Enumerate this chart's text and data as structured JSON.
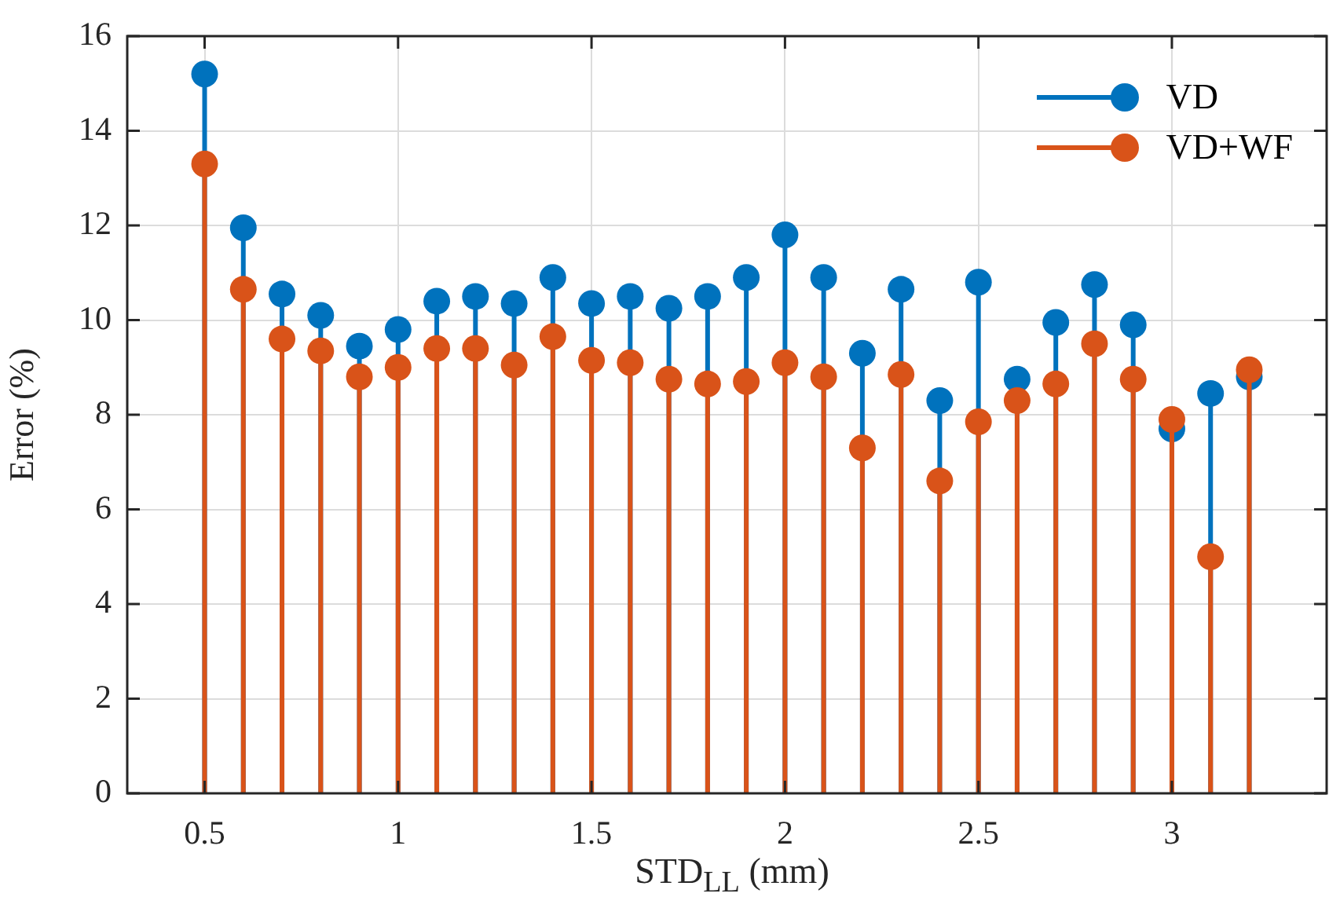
{
  "chart_data": {
    "type": "lollipop",
    "xlabel": "STD$_{LL}$ (mm)",
    "ylabel": "Error (%)",
    "x": [
      0.5,
      0.6,
      0.7,
      0.8,
      0.9,
      1.0,
      1.1,
      1.2,
      1.3,
      1.4,
      1.5,
      1.6,
      1.7,
      1.8,
      1.9,
      2.0,
      2.1,
      2.2,
      2.3,
      2.4,
      2.5,
      2.6,
      2.7,
      2.8,
      2.9,
      3.0,
      3.1,
      3.2
    ],
    "series": [
      {
        "name": "VD",
        "color": "#0072bd",
        "values": [
          15.2,
          11.95,
          10.55,
          10.1,
          9.45,
          9.8,
          10.4,
          10.5,
          10.35,
          10.9,
          10.35,
          10.5,
          10.25,
          10.5,
          10.9,
          11.8,
          10.9,
          9.3,
          10.65,
          8.3,
          10.8,
          8.75,
          9.95,
          10.75,
          9.9,
          7.7,
          8.45,
          8.8
        ]
      },
      {
        "name": "VD+WF",
        "color": "#d95319",
        "values": [
          13.3,
          10.65,
          9.6,
          9.35,
          8.8,
          9.0,
          9.4,
          9.4,
          9.05,
          9.65,
          9.15,
          9.1,
          8.75,
          8.65,
          8.7,
          9.1,
          8.8,
          7.3,
          8.85,
          6.6,
          7.85,
          8.3,
          8.65,
          9.5,
          8.75,
          7.9,
          5.0,
          8.95
        ]
      }
    ],
    "xlim": [
      0.3,
      3.4
    ],
    "xticks": [
      0.5,
      1,
      1.5,
      2,
      2.5,
      3
    ],
    "ylim": [
      0,
      16
    ],
    "yticks": [
      0,
      2,
      4,
      6,
      8,
      10,
      12,
      14,
      16
    ],
    "grid": true,
    "legend": "top right",
    "marker": "circle"
  }
}
